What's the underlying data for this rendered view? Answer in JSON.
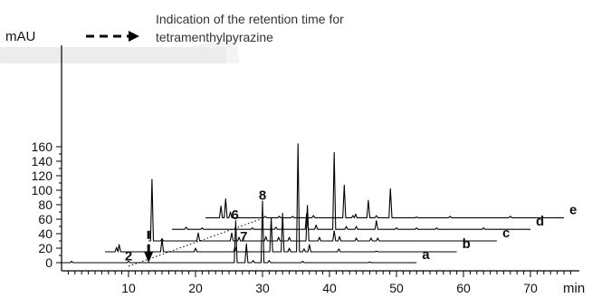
{
  "chart_data": {
    "type": "line",
    "xlabel": "min",
    "ylabel": "mAU",
    "xlim": [
      0,
      75
    ],
    "ylim": [
      -5,
      165
    ],
    "x_ticks": [
      10,
      20,
      30,
      40,
      50,
      60,
      70
    ],
    "y_ticks": [
      0,
      20,
      40,
      60,
      80,
      100,
      120,
      140,
      160
    ],
    "annotation": "Indication of the retention time for tetramenthylpyrazine",
    "annotation_lines": [
      "Indication of the retention time for",
      "tetramenthylpyrazine"
    ],
    "series": [
      {
        "name": "a",
        "x_start": 0,
        "x_end": 53,
        "baseline": 0,
        "peaks": [
          [
            1.5,
            2
          ],
          [
            10,
            2
          ],
          [
            26,
            58
          ],
          [
            27.6,
            26
          ],
          [
            28.6,
            3
          ],
          [
            30,
            85
          ],
          [
            31,
            3
          ],
          [
            36,
            2
          ],
          [
            46,
            1
          ]
        ]
      },
      {
        "name": "b",
        "x_start": 6.5,
        "x_end": 59,
        "baseline": 15,
        "peaks": [
          [
            8.2,
            6
          ],
          [
            8.6,
            10
          ],
          [
            15,
            18
          ],
          [
            20,
            5
          ],
          [
            25.9,
            7
          ],
          [
            31.3,
            47
          ],
          [
            33,
            53
          ],
          [
            34,
            5
          ],
          [
            35.3,
            149
          ],
          [
            36.2,
            4
          ],
          [
            37,
            10
          ],
          [
            41.4,
            4
          ],
          [
            47,
            1
          ]
        ]
      },
      {
        "name": "c",
        "x_start": 13,
        "x_end": 65,
        "baseline": 30,
        "peaks": [
          [
            13.5,
            85
          ],
          [
            15,
            3
          ],
          [
            20.4,
            11
          ],
          [
            25.4,
            11
          ],
          [
            26.5,
            5
          ],
          [
            30.5,
            6
          ],
          [
            32.4,
            5
          ],
          [
            34,
            5
          ],
          [
            36.7,
            49
          ],
          [
            38.5,
            5
          ],
          [
            40.7,
            14
          ],
          [
            41.5,
            6
          ],
          [
            44,
            4
          ],
          [
            46.2,
            4
          ],
          [
            47.2,
            4
          ]
        ]
      },
      {
        "name": "d",
        "x_start": 16.5,
        "x_end": 70,
        "baseline": 46,
        "peaks": [
          [
            18.6,
            3
          ],
          [
            21,
            2
          ],
          [
            28.5,
            2
          ],
          [
            32,
            3
          ],
          [
            36.6,
            22
          ],
          [
            38,
            6
          ],
          [
            40.7,
            106
          ],
          [
            42.5,
            4
          ],
          [
            44,
            4
          ],
          [
            47,
            12
          ],
          [
            50,
            2
          ],
          [
            53,
            2
          ],
          [
            56,
            2
          ],
          [
            63,
            2
          ]
        ]
      },
      {
        "name": "e",
        "x_start": 21.5,
        "x_end": 75,
        "baseline": 62,
        "peaks": [
          [
            23.8,
            16
          ],
          [
            24.5,
            26
          ],
          [
            25.2,
            8
          ],
          [
            30.4,
            2
          ],
          [
            32.5,
            2
          ],
          [
            34.5,
            2
          ],
          [
            37.6,
            3
          ],
          [
            42.2,
            45
          ],
          [
            43.5,
            3
          ],
          [
            43.9,
            5
          ],
          [
            45.8,
            24
          ],
          [
            47,
            3
          ],
          [
            49.1,
            40
          ],
          [
            53,
            1
          ],
          [
            58,
            2
          ],
          [
            67,
            2
          ]
        ]
      }
    ],
    "peak_labels": [
      {
        "label": "2",
        "x": 10,
        "y": 3
      },
      {
        "label": "6",
        "x": 25.9,
        "y": 60
      },
      {
        "label": "7",
        "x": 27.2,
        "y": 30
      },
      {
        "label": "8",
        "x": 30,
        "y": 87
      }
    ],
    "retention_marker": {
      "x": 13,
      "y_top": 44,
      "y_bottom": 0
    },
    "dotted_line": {
      "x1": 10,
      "y1": -5,
      "x2": 30,
      "y2": 61
    }
  }
}
